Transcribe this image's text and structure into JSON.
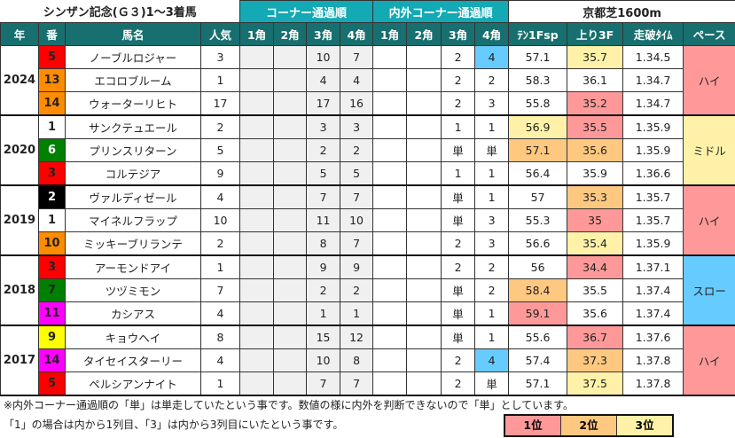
{
  "title": "シンザン記念(Ｇ３)1～3着馬",
  "group_corner": "コーナー通過順",
  "group_inout": "内外コーナー通過順",
  "course": "京都芝1600m",
  "headers": [
    "年",
    "番",
    "馬名",
    "人気",
    "1角",
    "2角",
    "3角",
    "4角",
    "1角",
    "2角",
    "3角",
    "4角",
    "ﾃﾝ1Fsp",
    "上り3F",
    "走破ﾀｲﾑ",
    "ペース"
  ],
  "colors": {
    "rank1": "#ff9999",
    "rank2": "#ffc880",
    "rank3": "#fff2a8",
    "inner4": "#66ccff",
    "pace_high": "#ff9999",
    "pace_middle": "#fff2a8",
    "pace_slow": "#66ccff"
  },
  "years": [
    {
      "year": "2024",
      "pace": "ハイ",
      "pace_color": "#ff9999",
      "rows": [
        {
          "no": "5",
          "no_bg": "#ff0000",
          "no_fg": "#222",
          "name": "ノーブルロジャー",
          "pop": "3",
          "c3": "10",
          "c4": "7",
          "i3": "2",
          "i4": "4",
          "i4_bg": "#66ccff",
          "ten": "57.1",
          "ten_bg": "",
          "agari": "35.7",
          "agari_bg": "#fff2a8",
          "time": "1.34.5"
        },
        {
          "no": "13",
          "no_bg": "#ff8c00",
          "no_fg": "#222",
          "name": "エコロブルーム",
          "pop": "1",
          "c3": "4",
          "c4": "4",
          "i3": "2",
          "i4": "2",
          "i4_bg": "",
          "ten": "58.3",
          "ten_bg": "",
          "agari": "36.1",
          "agari_bg": "",
          "time": "1.34.7"
        },
        {
          "no": "14",
          "no_bg": "#ff8c00",
          "no_fg": "#222",
          "name": "ウォーターリヒト",
          "pop": "17",
          "c3": "17",
          "c4": "16",
          "i3": "2",
          "i4": "3",
          "i4_bg": "",
          "ten": "55.8",
          "ten_bg": "",
          "agari": "35.2",
          "agari_bg": "#ff9999",
          "time": "1.34.7"
        }
      ]
    },
    {
      "year": "2020",
      "pace": "ミドル",
      "pace_color": "#fff2a8",
      "rows": [
        {
          "no": "1",
          "no_bg": "#ffffff",
          "no_fg": "#222",
          "name": "サンクテュエール",
          "pop": "2",
          "c3": "3",
          "c4": "3",
          "i3": "1",
          "i4": "1",
          "i4_bg": "",
          "ten": "56.9",
          "ten_bg": "#fff2a8",
          "agari": "35.5",
          "agari_bg": "#ff9999",
          "time": "1.35.9"
        },
        {
          "no": "6",
          "no_bg": "#008000",
          "no_fg": "#fff",
          "name": "プリンスリターン",
          "pop": "5",
          "c3": "2",
          "c4": "2",
          "i3": "単",
          "i4": "単",
          "i4_bg": "",
          "ten": "57.1",
          "ten_bg": "#ffc880",
          "agari": "35.6",
          "agari_bg": "#ffc880",
          "time": "1.35.9"
        },
        {
          "no": "3",
          "no_bg": "#ff0000",
          "no_fg": "#222",
          "name": "コルテジア",
          "pop": "9",
          "c3": "5",
          "c4": "5",
          "i3": "1",
          "i4": "1",
          "i4_bg": "",
          "ten": "56.4",
          "ten_bg": "",
          "agari": "35.9",
          "agari_bg": "",
          "time": "1.36.6"
        }
      ]
    },
    {
      "year": "2019",
      "pace": "ハイ",
      "pace_color": "#ff9999",
      "rows": [
        {
          "no": "2",
          "no_bg": "#000000",
          "no_fg": "#fff",
          "name": "ヴァルディゼール",
          "pop": "4",
          "c3": "7",
          "c4": "7",
          "i3": "単",
          "i4": "1",
          "i4_bg": "",
          "ten": "57",
          "ten_bg": "",
          "agari": "35.3",
          "agari_bg": "#ffc880",
          "time": "1.35.7"
        },
        {
          "no": "1",
          "no_bg": "#ffffff",
          "no_fg": "#222",
          "name": "マイネルフラップ",
          "pop": "10",
          "c3": "11",
          "c4": "10",
          "i3": "単",
          "i4": "3",
          "i4_bg": "",
          "ten": "55.3",
          "ten_bg": "",
          "agari": "35",
          "agari_bg": "#ff9999",
          "time": "1.35.7"
        },
        {
          "no": "10",
          "no_bg": "#ff8c00",
          "no_fg": "#222",
          "name": "ミッキーブリランテ",
          "pop": "2",
          "c3": "8",
          "c4": "7",
          "i3": "2",
          "i4": "3",
          "i4_bg": "",
          "ten": "56.6",
          "ten_bg": "",
          "agari": "35.4",
          "agari_bg": "#fff2a8",
          "time": "1.35.9"
        }
      ]
    },
    {
      "year": "2018",
      "pace": "スロー",
      "pace_color": "#66ccff",
      "rows": [
        {
          "no": "3",
          "no_bg": "#ff0000",
          "no_fg": "#222",
          "name": "アーモンドアイ",
          "pop": "1",
          "c3": "9",
          "c4": "9",
          "i3": "2",
          "i4": "2",
          "i4_bg": "",
          "ten": "56",
          "ten_bg": "",
          "agari": "34.4",
          "agari_bg": "#ff9999",
          "time": "1.37.1"
        },
        {
          "no": "7",
          "no_bg": "#008000",
          "no_fg": "#222",
          "name": "ツヅミモン",
          "pop": "7",
          "c3": "2",
          "c4": "2",
          "i3": "単",
          "i4": "2",
          "i4_bg": "",
          "ten": "58.4",
          "ten_bg": "#ffc880",
          "agari": "35.5",
          "agari_bg": "",
          "time": "1.37.4"
        },
        {
          "no": "11",
          "no_bg": "#ff00ff",
          "no_fg": "#222",
          "name": "カシアス",
          "pop": "4",
          "c3": "1",
          "c4": "1",
          "i3": "単",
          "i4": "1",
          "i4_bg": "",
          "ten": "59.1",
          "ten_bg": "#ff9999",
          "agari": "35.6",
          "agari_bg": "",
          "time": "1.37.4"
        }
      ]
    },
    {
      "year": "2017",
      "pace": "ハイ",
      "pace_color": "#ff9999",
      "rows": [
        {
          "no": "9",
          "no_bg": "#ffff00",
          "no_fg": "#222",
          "name": "キョウヘイ",
          "pop": "8",
          "c3": "15",
          "c4": "12",
          "i3": "単",
          "i4": "1",
          "i4_bg": "",
          "ten": "55.6",
          "ten_bg": "",
          "agari": "36.7",
          "agari_bg": "#ff9999",
          "time": "1.37.6"
        },
        {
          "no": "14",
          "no_bg": "#ff00ff",
          "no_fg": "#222",
          "name": "タイセイスターリー",
          "pop": "4",
          "c3": "10",
          "c4": "8",
          "i3": "2",
          "i4": "4",
          "i4_bg": "#66ccff",
          "ten": "57.4",
          "ten_bg": "",
          "agari": "37.3",
          "agari_bg": "#ffc880",
          "time": "1.37.8"
        },
        {
          "no": "5",
          "no_bg": "#ff0000",
          "no_fg": "#222",
          "name": "ペルシアンナイト",
          "pop": "1",
          "c3": "7",
          "c4": "7",
          "i3": "2",
          "i4": "単",
          "i4_bg": "",
          "ten": "57.1",
          "ten_bg": "",
          "agari": "37.5",
          "agari_bg": "#fff2a8",
          "time": "1.37.8"
        }
      ]
    }
  ],
  "notes": [
    "※内外コーナー通過順の「単」は単走していたという事です。数値の様に内外を判断できないので「単」としています。",
    "「1」の場合は内から1列目、「3」は内から3列目にいたという事です。"
  ],
  "legend": [
    "1位",
    "2位",
    "3位"
  ]
}
